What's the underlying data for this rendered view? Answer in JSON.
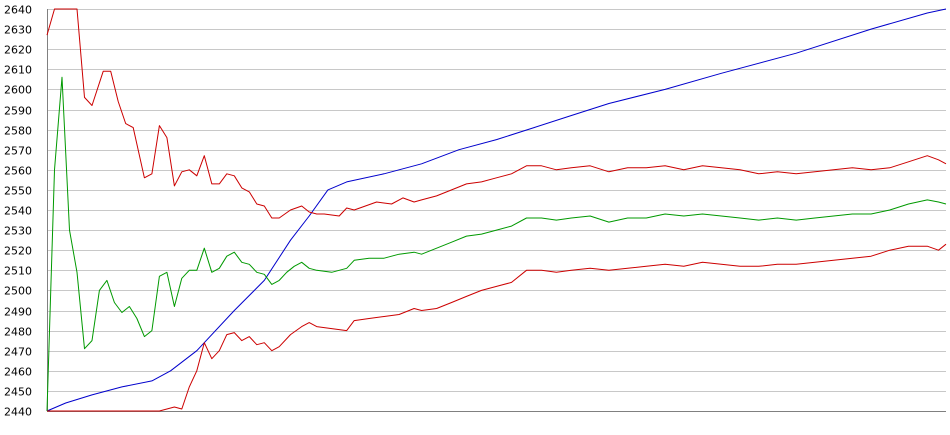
{
  "chart_data": {
    "type": "line",
    "title": "",
    "xlabel": "",
    "ylabel": "",
    "ylim": [
      2440,
      2640
    ],
    "yticks": [
      2440,
      2450,
      2460,
      2470,
      2480,
      2490,
      2500,
      2510,
      2520,
      2530,
      2540,
      2550,
      2560,
      2570,
      2580,
      2590,
      2600,
      2610,
      2620,
      2630,
      2640
    ],
    "grid": true,
    "legend": "none",
    "x_count": 150,
    "series": [
      {
        "color": "#0000cc",
        "points": [
          [
            0,
            2440
          ],
          [
            5,
            2444
          ],
          [
            12,
            2448
          ],
          [
            20,
            2452
          ],
          [
            28,
            2455
          ],
          [
            33,
            2460
          ],
          [
            40,
            2470
          ],
          [
            50,
            2490
          ],
          [
            58,
            2505
          ],
          [
            65,
            2525
          ],
          [
            70,
            2537
          ],
          [
            75,
            2550
          ],
          [
            80,
            2554
          ],
          [
            90,
            2558
          ],
          [
            100,
            2563
          ],
          [
            110,
            2570
          ],
          [
            120,
            2575
          ],
          [
            130,
            2581
          ],
          [
            140,
            2587
          ],
          [
            150,
            2593
          ],
          [
            165,
            2600
          ],
          [
            180,
            2608
          ],
          [
            200,
            2618
          ],
          [
            220,
            2630
          ],
          [
            235,
            2638
          ],
          [
            240,
            2640
          ]
        ]
      },
      {
        "color": "#cc0000",
        "points": [
          [
            0,
            2627
          ],
          [
            2,
            2640
          ],
          [
            8,
            2640
          ],
          [
            10,
            2596
          ],
          [
            12,
            2592
          ],
          [
            15,
            2609
          ],
          [
            17,
            2609
          ],
          [
            19,
            2594
          ],
          [
            21,
            2583
          ],
          [
            23,
            2581
          ],
          [
            26,
            2556
          ],
          [
            28,
            2558
          ],
          [
            30,
            2582
          ],
          [
            32,
            2576
          ],
          [
            34,
            2552
          ],
          [
            36,
            2559
          ],
          [
            38,
            2560
          ],
          [
            40,
            2557
          ],
          [
            42,
            2567
          ],
          [
            44,
            2553
          ],
          [
            46,
            2553
          ],
          [
            48,
            2558
          ],
          [
            50,
            2557
          ],
          [
            52,
            2551
          ],
          [
            54,
            2549
          ],
          [
            56,
            2543
          ],
          [
            58,
            2542
          ],
          [
            60,
            2536
          ],
          [
            62,
            2536
          ],
          [
            65,
            2540
          ],
          [
            68,
            2542
          ],
          [
            70,
            2539
          ],
          [
            72,
            2538
          ],
          [
            74,
            2538
          ],
          [
            78,
            2537
          ],
          [
            80,
            2541
          ],
          [
            82,
            2540
          ],
          [
            85,
            2542
          ],
          [
            88,
            2544
          ],
          [
            92,
            2543
          ],
          [
            95,
            2546
          ],
          [
            98,
            2544
          ],
          [
            100,
            2545
          ],
          [
            104,
            2547
          ],
          [
            108,
            2550
          ],
          [
            112,
            2553
          ],
          [
            116,
            2554
          ],
          [
            120,
            2556
          ],
          [
            124,
            2558
          ],
          [
            128,
            2562
          ],
          [
            132,
            2562
          ],
          [
            136,
            2560
          ],
          [
            140,
            2561
          ],
          [
            145,
            2562
          ],
          [
            150,
            2559
          ],
          [
            155,
            2561
          ],
          [
            160,
            2561
          ],
          [
            165,
            2562
          ],
          [
            170,
            2560
          ],
          [
            175,
            2562
          ],
          [
            180,
            2561
          ],
          [
            185,
            2560
          ],
          [
            190,
            2558
          ],
          [
            195,
            2559
          ],
          [
            200,
            2558
          ],
          [
            205,
            2559
          ],
          [
            210,
            2560
          ],
          [
            215,
            2561
          ],
          [
            220,
            2560
          ],
          [
            225,
            2561
          ],
          [
            230,
            2564
          ],
          [
            235,
            2567
          ],
          [
            238,
            2565
          ],
          [
            240,
            2563
          ]
        ]
      },
      {
        "color": "#009900",
        "points": [
          [
            0,
            2440
          ],
          [
            2,
            2560
          ],
          [
            4,
            2606
          ],
          [
            6,
            2530
          ],
          [
            8,
            2509
          ],
          [
            10,
            2471
          ],
          [
            12,
            2475
          ],
          [
            14,
            2500
          ],
          [
            16,
            2505
          ],
          [
            18,
            2494
          ],
          [
            20,
            2489
          ],
          [
            22,
            2492
          ],
          [
            24,
            2486
          ],
          [
            26,
            2477
          ],
          [
            28,
            2480
          ],
          [
            30,
            2507
          ],
          [
            32,
            2509
          ],
          [
            34,
            2492
          ],
          [
            36,
            2506
          ],
          [
            38,
            2510
          ],
          [
            40,
            2510
          ],
          [
            42,
            2521
          ],
          [
            44,
            2509
          ],
          [
            46,
            2511
          ],
          [
            48,
            2517
          ],
          [
            50,
            2519
          ],
          [
            52,
            2514
          ],
          [
            54,
            2513
          ],
          [
            56,
            2509
          ],
          [
            58,
            2508
          ],
          [
            60,
            2503
          ],
          [
            62,
            2505
          ],
          [
            64,
            2509
          ],
          [
            66,
            2512
          ],
          [
            68,
            2514
          ],
          [
            70,
            2511
          ],
          [
            72,
            2510
          ],
          [
            76,
            2509
          ],
          [
            80,
            2511
          ],
          [
            82,
            2515
          ],
          [
            86,
            2516
          ],
          [
            90,
            2516
          ],
          [
            94,
            2518
          ],
          [
            98,
            2519
          ],
          [
            100,
            2518
          ],
          [
            104,
            2521
          ],
          [
            108,
            2524
          ],
          [
            112,
            2527
          ],
          [
            116,
            2528
          ],
          [
            120,
            2530
          ],
          [
            124,
            2532
          ],
          [
            128,
            2536
          ],
          [
            132,
            2536
          ],
          [
            136,
            2535
          ],
          [
            140,
            2536
          ],
          [
            145,
            2537
          ],
          [
            150,
            2534
          ],
          [
            155,
            2536
          ],
          [
            160,
            2536
          ],
          [
            165,
            2538
          ],
          [
            170,
            2537
          ],
          [
            175,
            2538
          ],
          [
            180,
            2537
          ],
          [
            185,
            2536
          ],
          [
            190,
            2535
          ],
          [
            195,
            2536
          ],
          [
            200,
            2535
          ],
          [
            205,
            2536
          ],
          [
            210,
            2537
          ],
          [
            215,
            2538
          ],
          [
            220,
            2538
          ],
          [
            225,
            2540
          ],
          [
            230,
            2543
          ],
          [
            235,
            2545
          ],
          [
            238,
            2544
          ],
          [
            240,
            2543
          ]
        ]
      },
      {
        "color": "#cc0000",
        "points": [
          [
            0,
            2440
          ],
          [
            10,
            2440
          ],
          [
            20,
            2440
          ],
          [
            30,
            2440
          ],
          [
            34,
            2442
          ],
          [
            36,
            2441
          ],
          [
            38,
            2452
          ],
          [
            40,
            2460
          ],
          [
            42,
            2474
          ],
          [
            44,
            2466
          ],
          [
            46,
            2470
          ],
          [
            48,
            2478
          ],
          [
            50,
            2479
          ],
          [
            52,
            2475
          ],
          [
            54,
            2477
          ],
          [
            56,
            2473
          ],
          [
            58,
            2474
          ],
          [
            60,
            2470
          ],
          [
            62,
            2472
          ],
          [
            65,
            2478
          ],
          [
            68,
            2482
          ],
          [
            70,
            2484
          ],
          [
            72,
            2482
          ],
          [
            76,
            2481
          ],
          [
            80,
            2480
          ],
          [
            82,
            2485
          ],
          [
            86,
            2486
          ],
          [
            90,
            2487
          ],
          [
            94,
            2488
          ],
          [
            98,
            2491
          ],
          [
            100,
            2490
          ],
          [
            104,
            2491
          ],
          [
            108,
            2494
          ],
          [
            112,
            2497
          ],
          [
            116,
            2500
          ],
          [
            120,
            2502
          ],
          [
            124,
            2504
          ],
          [
            128,
            2510
          ],
          [
            132,
            2510
          ],
          [
            136,
            2509
          ],
          [
            140,
            2510
          ],
          [
            145,
            2511
          ],
          [
            150,
            2510
          ],
          [
            155,
            2511
          ],
          [
            160,
            2512
          ],
          [
            165,
            2513
          ],
          [
            170,
            2512
          ],
          [
            175,
            2514
          ],
          [
            180,
            2513
          ],
          [
            185,
            2512
          ],
          [
            190,
            2512
          ],
          [
            195,
            2513
          ],
          [
            200,
            2513
          ],
          [
            205,
            2514
          ],
          [
            210,
            2515
          ],
          [
            215,
            2516
          ],
          [
            220,
            2517
          ],
          [
            225,
            2520
          ],
          [
            230,
            2522
          ],
          [
            235,
            2522
          ],
          [
            238,
            2520
          ],
          [
            240,
            2523
          ]
        ]
      }
    ]
  }
}
